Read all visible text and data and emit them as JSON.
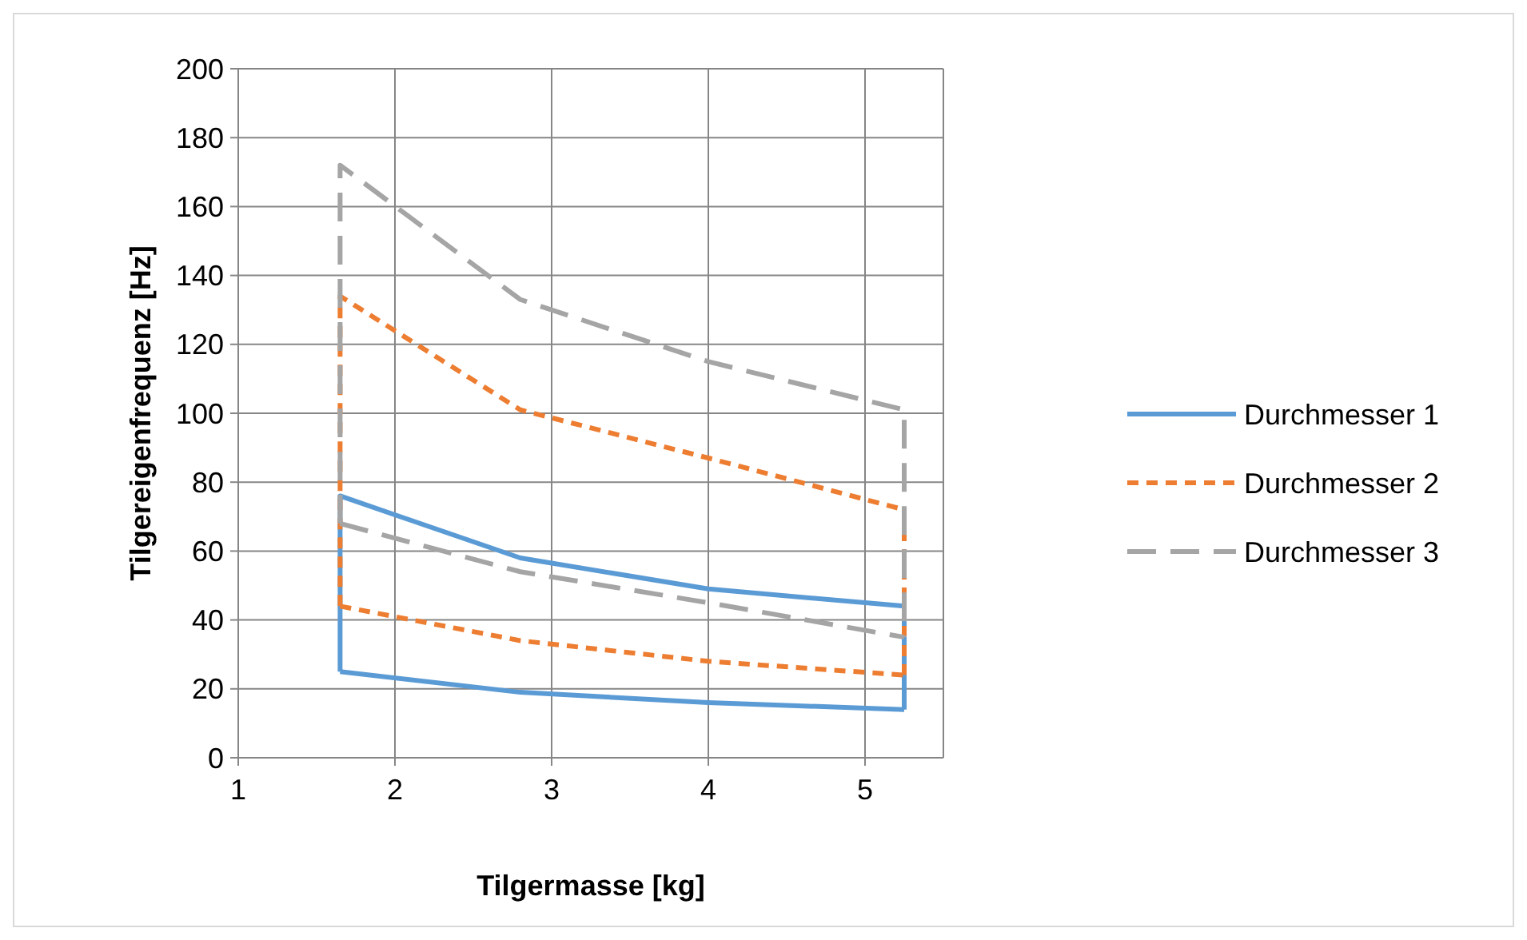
{
  "chart_data": {
    "type": "line",
    "xlabel": "Tilgermasse [kg]",
    "ylabel": "Tilgereigenfrequenz [Hz]",
    "xlim": [
      1,
      5.5
    ],
    "xticks": [
      1,
      2,
      3,
      4,
      5
    ],
    "ylim": [
      0,
      200
    ],
    "yticks": [
      0,
      20,
      40,
      60,
      80,
      100,
      120,
      140,
      160,
      180,
      200
    ],
    "grid": true,
    "legend": "right",
    "marker": "none",
    "series": [
      {
        "name": "Durchmesser 1",
        "color": "#5b9bd5",
        "line_style": "solid",
        "x": [
          1.65,
          1.65,
          2.8,
          4,
          5.25,
          5.25
        ],
        "values": [
          25,
          76,
          58,
          49,
          44,
          14
        ]
      },
      {
        "name": "Durchmesser 2",
        "color": "#ed7d31",
        "line_style": "dotted",
        "x": [
          1.65,
          1.65,
          2.8,
          4,
          5.25,
          5.25
        ],
        "values": [
          44,
          134,
          101,
          87,
          72,
          24
        ]
      },
      {
        "name": "Durchmesser 3",
        "color": "#a5a5a5",
        "line_style": "dashed",
        "x": [
          1.65,
          1.65,
          2.8,
          4,
          5.25,
          5.25
        ],
        "values": [
          68,
          172,
          133,
          115,
          101,
          35
        ]
      },
      {
        "color": "#5b9bd5",
        "line_style": "solid",
        "x": [
          1.65,
          2.8,
          4,
          5.25
        ],
        "values": [
          25,
          19,
          16,
          14
        ]
      },
      {
        "color": "#ed7d31",
        "line_style": "dotted",
        "x": [
          1.65,
          2.8,
          4,
          5.25
        ],
        "values": [
          44,
          34,
          28,
          24
        ]
      },
      {
        "color": "#a5a5a5",
        "line_style": "dashed",
        "x": [
          1.65,
          2.8,
          4,
          5.25
        ],
        "values": [
          68,
          54,
          45,
          35
        ]
      }
    ]
  }
}
